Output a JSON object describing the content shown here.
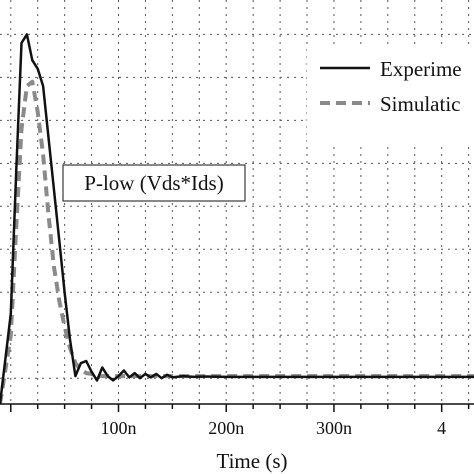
{
  "chart_data": {
    "type": "line",
    "title": "",
    "xlabel": "Time (s)",
    "ylabel": "",
    "x_tick_labels": [
      "100n",
      "200n",
      "300n",
      "4"
    ],
    "x_tick_values": [
      1e-07,
      2e-07,
      3e-07,
      4e-07
    ],
    "xlim": [
      -1e-08,
      4.3e-07
    ],
    "ylim": [
      -0.6,
      8.8
    ],
    "grid": true,
    "legend_position": "top-right",
    "annotation": "P-low (Vds*Ids)",
    "colors": {
      "experiment": "#111111",
      "simulation": "#8a8a8a"
    },
    "series": [
      {
        "name": "Experime",
        "style": "solid",
        "x": [
          -1e-08,
          0,
          5e-09,
          1e-08,
          1.5e-08,
          2e-08,
          2.5e-08,
          3e-08,
          3.5e-08,
          4e-08,
          4.5e-08,
          5e-08,
          5.5e-08,
          6e-08,
          6.5e-08,
          7e-08,
          7.5e-08,
          8e-08,
          8.5e-08,
          9e-08,
          9.5e-08,
          1e-07,
          1.05e-07,
          1.1e-07,
          1.15e-07,
          1.2e-07,
          1.25e-07,
          1.3e-07,
          1.35e-07,
          1.4e-07,
          1.45e-07,
          1.5e-07,
          1.6e-07,
          1.7e-07,
          1.8e-07,
          2e-07,
          2.2e-07,
          2.5e-07,
          3e-07,
          3.5e-07,
          4e-07,
          4.3e-07
        ],
        "y": [
          -0.6,
          1.5,
          4.8,
          7.8,
          8.0,
          7.4,
          7.2,
          6.8,
          5.6,
          4.4,
          3.2,
          2.0,
          0.9,
          0.05,
          0.35,
          0.4,
          0.15,
          -0.05,
          0.25,
          0.05,
          -0.05,
          0.05,
          0.18,
          0.02,
          0.12,
          0.0,
          0.1,
          0.02,
          0.1,
          0.0,
          0.08,
          0.02,
          0.05,
          0.03,
          0.04,
          0.03,
          0.03,
          0.03,
          0.03,
          0.03,
          0.03,
          0.03
        ]
      },
      {
        "name": "Simulatic",
        "style": "dashed",
        "x": [
          -1e-08,
          0,
          5e-09,
          1e-08,
          1.5e-08,
          2e-08,
          2.5e-08,
          3e-08,
          3.5e-08,
          4e-08,
          4.5e-08,
          5e-08,
          5.5e-08,
          6e-08,
          6.5e-08,
          7e-08,
          7.5e-08,
          8e-08,
          9e-08,
          1e-07,
          1.1e-07,
          1.2e-07,
          1.4e-07,
          1.6e-07,
          2e-07,
          2.5e-07,
          3e-07,
          3.5e-07,
          4e-07,
          4.3e-07
        ],
        "y": [
          -0.6,
          1.0,
          3.5,
          5.8,
          6.8,
          6.9,
          6.2,
          5.2,
          3.8,
          2.6,
          1.8,
          1.2,
          0.7,
          0.35,
          0.2,
          0.12,
          0.1,
          0.05,
          0.05,
          0.05,
          0.05,
          0.05,
          0.05,
          0.05,
          0.05,
          0.05,
          0.05,
          0.05,
          0.05,
          0.05
        ]
      }
    ]
  }
}
